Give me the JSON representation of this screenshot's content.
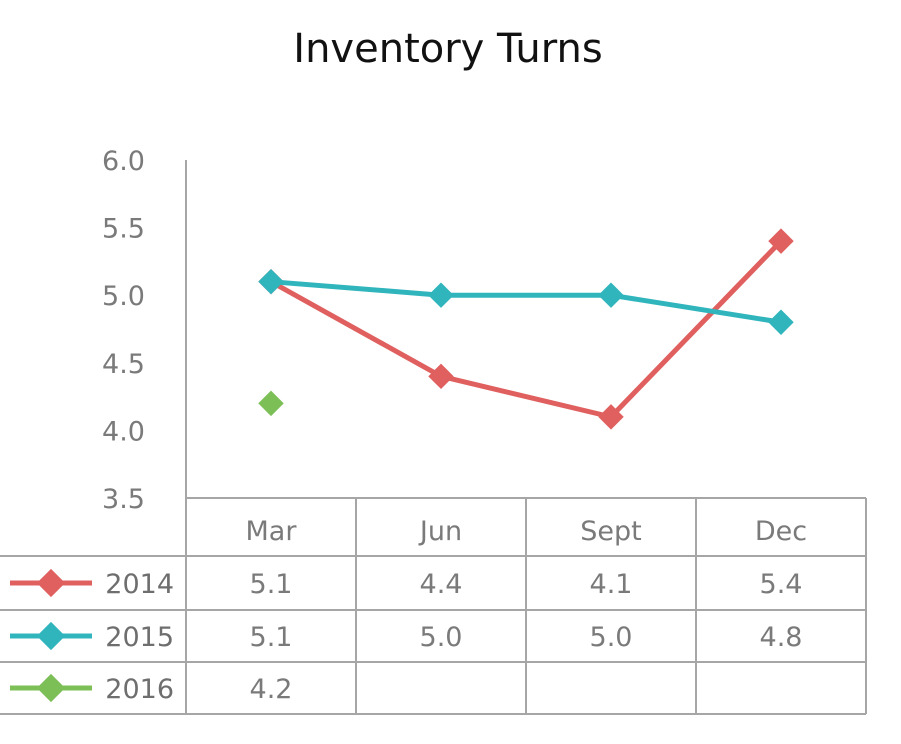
{
  "chart_data": {
    "type": "line",
    "title": "Inventory Turns",
    "categories": [
      "Mar",
      "Jun",
      "Sept",
      "Dec"
    ],
    "ylim": [
      3.5,
      6.0
    ],
    "yticks": [
      "6.0",
      "5.5",
      "5.0",
      "4.5",
      "4.0",
      "3.5"
    ],
    "series": [
      {
        "name": "2014",
        "color": "#e0605f",
        "values": [
          5.1,
          4.4,
          4.1,
          5.4
        ],
        "labels": [
          "5.1",
          "4.4",
          "4.1",
          "5.4"
        ]
      },
      {
        "name": "2015",
        "color": "#31b5bd",
        "values": [
          5.1,
          5.0,
          5.0,
          4.8
        ],
        "labels": [
          "5.1",
          "5.0",
          "5.0",
          "4.8"
        ]
      },
      {
        "name": "2016",
        "color": "#7cbf56",
        "values": [
          4.2,
          null,
          null,
          null
        ],
        "labels": [
          "4.2",
          "",
          "",
          ""
        ]
      }
    ],
    "legend": "data-table",
    "grid": false
  }
}
